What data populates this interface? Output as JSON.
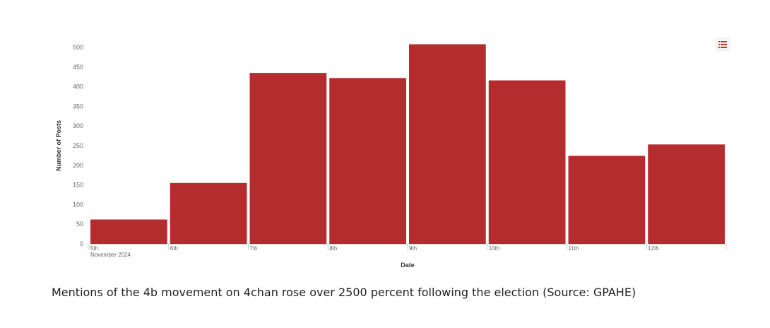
{
  "chart_data": {
    "type": "bar",
    "categories": [
      "5th",
      "6th",
      "7th",
      "8th",
      "9th",
      "10th",
      "11th",
      "12th"
    ],
    "category_sublabel": "November 2024",
    "values": [
      62,
      155,
      435,
      422,
      508,
      416,
      224,
      253
    ],
    "xlabel": "Date",
    "ylabel": "Number of Posts",
    "ylim": [
      0,
      500
    ],
    "yticks": [
      0,
      50,
      100,
      150,
      200,
      250,
      300,
      350,
      400,
      450,
      500
    ],
    "grid": false,
    "bar_color": "#b52c2f"
  },
  "caption": "Mentions of the 4b movement on 4chan rose over 2500 percent following the election (Source: GPAHE)",
  "menu": {
    "icon": "list-icon",
    "color": "#c0392b"
  }
}
